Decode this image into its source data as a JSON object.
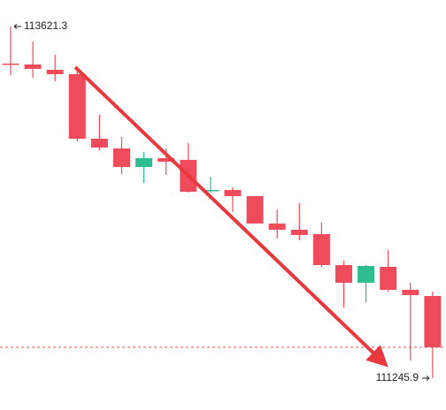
{
  "chart_data": {
    "type": "candlestick",
    "open": [
      113370.6,
      113364.7,
      113328.9,
      113299,
      112863.4,
      112797.7,
      112672.4,
      112732.1,
      112720.1,
      112511.3,
      112517.2,
      112475.4,
      112290.4,
      112248.7,
      112218.8,
      112009.9,
      111890.6,
      111998,
      111842.8,
      111801.1
    ],
    "high": [
      113621.3,
      113519.8,
      113430.3,
      113334.8,
      113024.5,
      112875.3,
      112773.8,
      112797.7,
      112833.5,
      112606.7,
      112535.1,
      112475.4,
      112385.9,
      112427.7,
      112296.4,
      112039.8,
      112009.9,
      112111.4,
      111890.6,
      111830.9
    ],
    "low": [
      113293.1,
      113275.2,
      113251.3,
      112845.5,
      112785.8,
      112624.6,
      112565,
      112618.7,
      112499.3,
      112499.3,
      112368,
      112290.4,
      112189,
      112177,
      111998,
      111723.5,
      111759.3,
      111830.9,
      111365.4,
      111245.9
    ],
    "close": [
      113364.7,
      113334.8,
      113299,
      112863.4,
      112803.7,
      112672.4,
      112732.1,
      112708.2,
      112505.3,
      112517.2,
      112475.4,
      112290.4,
      112248.7,
      112212.9,
      112009.9,
      111890.6,
      112004,
      111842.8,
      111807,
      111454.9
    ],
    "up_color": "#2dbd8e",
    "down_color": "#ef4b5b",
    "ylim": [
      111061,
      113800
    ],
    "high_mark": 113621.3,
    "low_mark": 111245.9
  }
}
